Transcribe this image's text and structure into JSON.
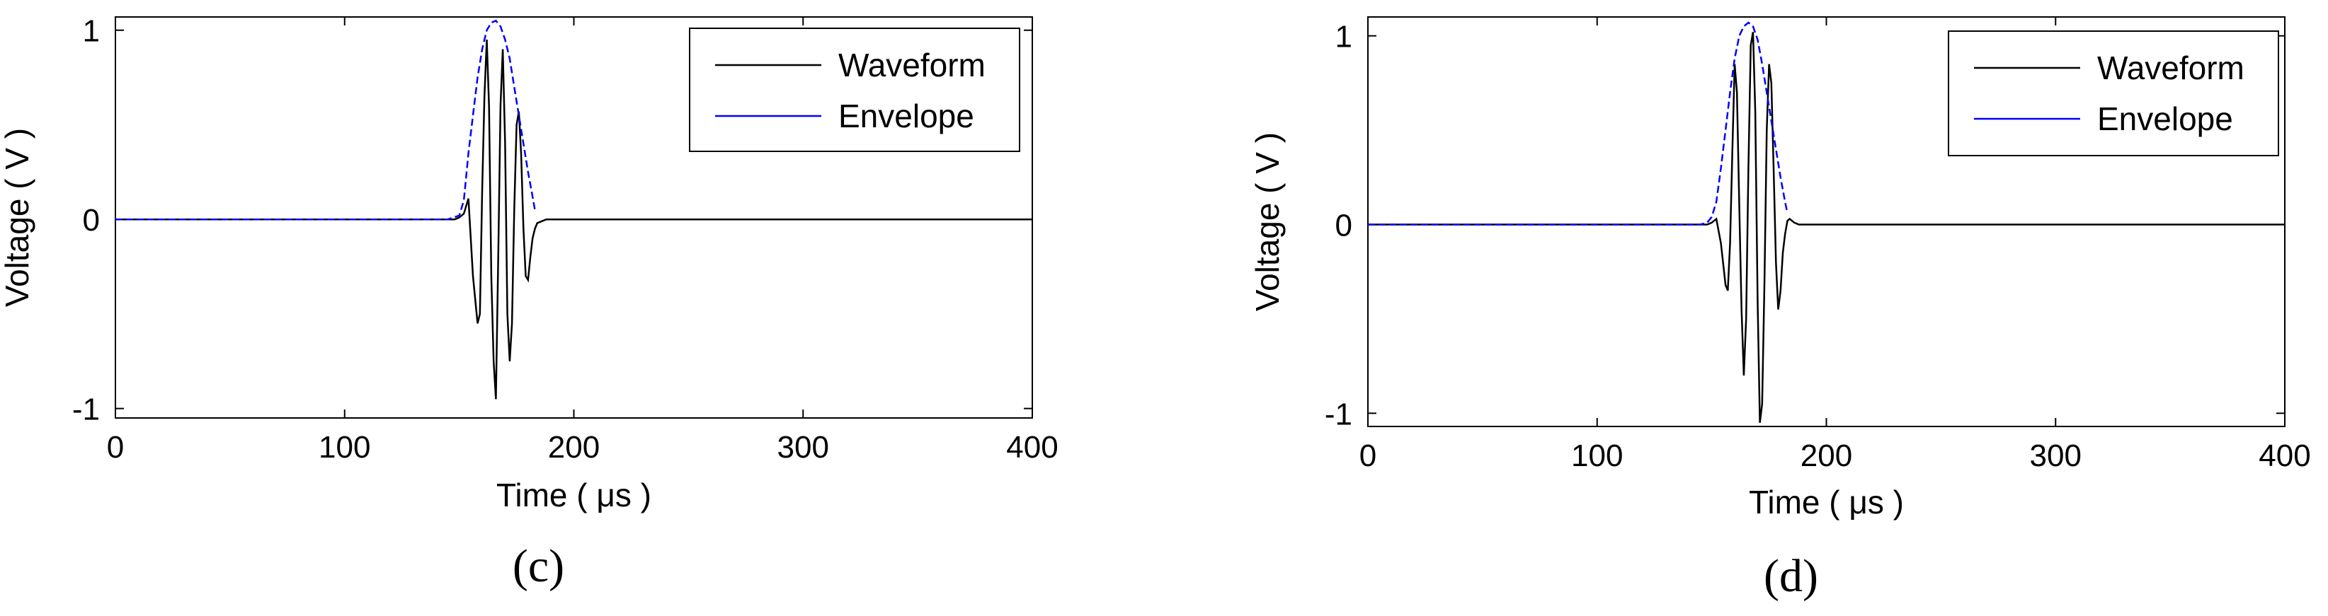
{
  "figure": {
    "panels": [
      {
        "id": "c",
        "caption": "(c)"
      },
      {
        "id": "d",
        "caption": "(d)"
      }
    ]
  },
  "chart_data": [
    {
      "type": "line",
      "title": "",
      "caption": "(c)",
      "xlabel": "Time ( μs )",
      "ylabel": "Voltage ( V )",
      "xlim": [
        0,
        400
      ],
      "ylim": [
        -1.05,
        1.07
      ],
      "xticks": [
        0,
        100,
        200,
        300,
        400
      ],
      "xtick_labels": [
        "0",
        "100",
        "200",
        "300",
        "400"
      ],
      "yticks": [
        -1,
        0,
        1
      ],
      "ytick_labels": [
        "-1",
        "0",
        "1"
      ],
      "grid": false,
      "legend_position": "top-right",
      "series": [
        {
          "name": "Waveform",
          "color": "#000000",
          "style": "solid",
          "x": [
            0,
            148,
            150,
            152,
            154,
            156,
            158,
            159,
            160,
            161,
            162,
            163,
            164,
            165,
            166,
            167,
            168,
            169,
            170,
            171,
            172,
            173,
            174,
            175,
            176,
            177,
            178,
            179,
            180,
            181,
            182,
            183,
            184,
            186,
            188,
            190,
            400
          ],
          "y": [
            0,
            0,
            0.01,
            0.03,
            0.11,
            -0.3,
            -0.55,
            -0.5,
            0.15,
            0.65,
            0.95,
            0.6,
            -0.3,
            -0.75,
            -0.95,
            -0.2,
            0.6,
            0.9,
            0.4,
            -0.5,
            -0.75,
            -0.55,
            0.05,
            0.5,
            0.57,
            0.35,
            -0.05,
            -0.3,
            -0.32,
            -0.2,
            -0.1,
            -0.05,
            -0.02,
            -0.01,
            0,
            0,
            0
          ]
        },
        {
          "name": "Envelope",
          "color": "#0000ff",
          "style": "dashed",
          "x": [
            0,
            145,
            150,
            152,
            154,
            156,
            158,
            160,
            162,
            164,
            166,
            168,
            170,
            172,
            174,
            176,
            178,
            180,
            182,
            183
          ],
          "y": [
            0,
            0,
            0.02,
            0.1,
            0.35,
            0.55,
            0.75,
            0.9,
            1.0,
            1.04,
            1.05,
            1.02,
            0.95,
            0.85,
            0.7,
            0.55,
            0.4,
            0.25,
            0.12,
            0.05
          ]
        }
      ]
    },
    {
      "type": "line",
      "title": "",
      "caption": "(d)",
      "xlabel": "Time ( μs )",
      "ylabel": "Voltage ( V )",
      "xlim": [
        0,
        400
      ],
      "ylim": [
        -1.07,
        1.1
      ],
      "xticks": [
        0,
        100,
        200,
        300,
        400
      ],
      "xtick_labels": [
        "0",
        "100",
        "200",
        "300",
        "400"
      ],
      "yticks": [
        -1,
        0,
        1
      ],
      "ytick_labels": [
        "-1",
        "0",
        "1"
      ],
      "grid": false,
      "legend_position": "top-right",
      "series": [
        {
          "name": "Waveform",
          "color": "#000000",
          "style": "solid",
          "x": [
            0,
            148,
            150,
            152,
            154,
            156,
            157,
            158,
            159,
            160,
            161,
            162,
            163,
            164,
            165,
            166,
            167,
            168,
            169,
            170,
            171,
            172,
            173,
            174,
            175,
            176,
            177,
            178,
            179,
            180,
            181,
            182,
            183,
            184,
            186,
            188,
            190,
            400
          ],
          "y": [
            0,
            0,
            0.01,
            0.03,
            -0.1,
            -0.32,
            -0.35,
            -0.1,
            0.4,
            0.85,
            0.7,
            0.1,
            -0.45,
            -0.8,
            -0.5,
            0.3,
            0.95,
            1.02,
            0.6,
            -0.4,
            -1.05,
            -0.95,
            -0.3,
            0.5,
            0.85,
            0.75,
            0.3,
            -0.2,
            -0.45,
            -0.35,
            -0.15,
            -0.05,
            0.02,
            0.03,
            0.01,
            0,
            0,
            0
          ]
        },
        {
          "name": "Envelope",
          "color": "#0000ff",
          "style": "dashed",
          "x": [
            0,
            145,
            148,
            150,
            152,
            154,
            156,
            158,
            160,
            162,
            164,
            166,
            168,
            170,
            172,
            174,
            176,
            178,
            180,
            182,
            183
          ],
          "y": [
            0,
            0,
            0.01,
            0.04,
            0.12,
            0.3,
            0.5,
            0.7,
            0.88,
            1.0,
            1.05,
            1.07,
            1.05,
            0.98,
            0.85,
            0.7,
            0.55,
            0.4,
            0.25,
            0.12,
            0.06
          ]
        }
      ]
    }
  ]
}
